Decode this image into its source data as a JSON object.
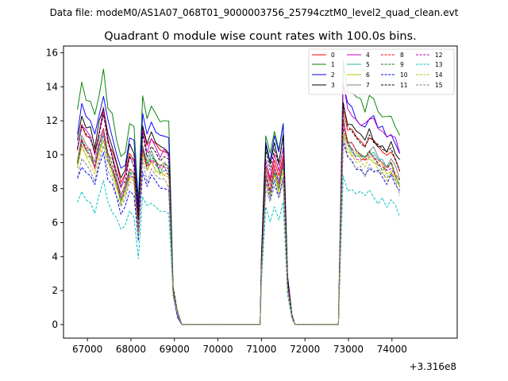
{
  "chart_data": {
    "type": "line",
    "suptitle": "Data file: modeM0/AS1A07_068T01_9000003756_25794cztM0_level2_quad_clean.evt",
    "title": "Quadrant 0 module wise count rates with 100.0s bins.",
    "xlabel": "",
    "ylabel": "",
    "x_offset_label": "+3.316e8",
    "xlim": [
      66450,
      75500
    ],
    "ylim": [
      -0.8,
      16.4
    ],
    "xticks": [
      67000,
      68000,
      69000,
      70000,
      71000,
      72000,
      73000,
      74000
    ],
    "yticks": [
      0,
      2,
      4,
      6,
      8,
      10,
      12,
      14,
      16
    ],
    "legend_position": "top-right",
    "legend_columns": 4,
    "segments": [
      {
        "start": 66770,
        "n": 24
      },
      {
        "start": 69070,
        "n": 20
      },
      {
        "start": 71000,
        "n": 8
      },
      {
        "start": 71770,
        "n": 11
      },
      {
        "start": 72780,
        "n": 15
      }
    ],
    "series": [
      {
        "name": "0",
        "color": "#ff0000",
        "dash": "solid",
        "base": 10.3,
        "peak": 12.9,
        "s3": 9.9
      },
      {
        "name": "1",
        "color": "#008000",
        "dash": "solid",
        "base": 12.2,
        "peak": 15.5,
        "s3": 11.8
      },
      {
        "name": "2",
        "color": "#0000ff",
        "dash": "solid",
        "base": 11.2,
        "peak": 14.3,
        "s3": 11.4
      },
      {
        "name": "3",
        "color": "#000000",
        "dash": "solid",
        "base": 10.6,
        "peak": 13.1,
        "s3": 11.0
      },
      {
        "name": "4",
        "color": "#bf00bf",
        "dash": "solid",
        "base": 10.2,
        "peak": 14.2,
        "s3": 10.2
      },
      {
        "name": "5",
        "color": "#20b2aa",
        "dash": "solid",
        "base": 9.3,
        "peak": 11.8,
        "s3": 9.3
      },
      {
        "name": "6",
        "color": "#bfbf00",
        "dash": "solid",
        "base": 9.0,
        "peak": 11.5,
        "s3": 9.1
      },
      {
        "name": "7",
        "color": "#808080",
        "dash": "solid",
        "base": 9.6,
        "peak": 12.2,
        "s3": 9.6
      },
      {
        "name": "8",
        "color": "#ff0000",
        "dash": "dashed",
        "base": 9.4,
        "peak": 11.9,
        "s3": 9.4
      },
      {
        "name": "9",
        "color": "#008000",
        "dash": "dashed",
        "base": 9.3,
        "peak": 11.7,
        "s3": 9.2
      },
      {
        "name": "10",
        "color": "#0000ff",
        "dash": "dashed",
        "base": 8.2,
        "peak": 10.8,
        "s3": 8.6
      },
      {
        "name": "11",
        "color": "#000000",
        "dash": "dashed",
        "base": 10.0,
        "peak": 12.8,
        "s3": 10.7
      },
      {
        "name": "12",
        "color": "#bf00bf",
        "dash": "dashed",
        "base": 9.2,
        "peak": 11.6,
        "s3": 9.3
      },
      {
        "name": "13",
        "color": "#00bfbf",
        "dash": "dashed",
        "base": 6.8,
        "peak": 9.0,
        "s3": 7.1
      },
      {
        "name": "14",
        "color": "#bfbf00",
        "dash": "dashed",
        "base": 8.9,
        "peak": 11.2,
        "s3": 8.8
      },
      {
        "name": "15",
        "color": "#808080",
        "dash": "dashed",
        "base": 8.5,
        "peak": 10.9,
        "s3": 8.3
      }
    ]
  }
}
